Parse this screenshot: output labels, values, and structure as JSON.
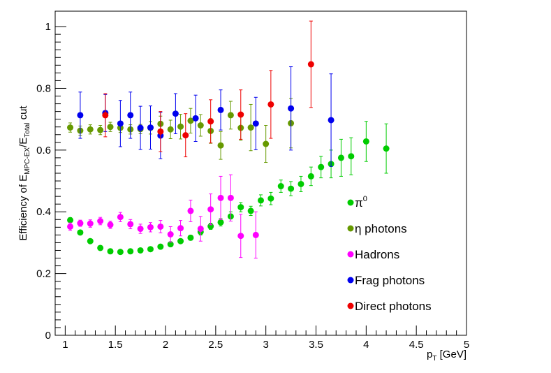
{
  "chart_data": {
    "type": "scatter",
    "title": "",
    "xlabel": "p",
    "xlabel_sub": "T",
    "xlabel_unit": " [GeV]",
    "ylabel_parts": [
      "Efficiency of E",
      "MPC-EX",
      "/E",
      "Total",
      " cut"
    ],
    "xlim": [
      0.9,
      5
    ],
    "ylim": [
      0,
      1.05
    ],
    "xticks": [
      1,
      1.5,
      2,
      2.5,
      3,
      3.5,
      4,
      4.5,
      5
    ],
    "xtick_labels": [
      "1",
      "1.5",
      "2",
      "2.5",
      "3",
      "3.5",
      "4",
      "4.5",
      "5"
    ],
    "yticks": [
      0,
      0.2,
      0.4,
      0.6,
      0.8,
      1
    ],
    "ytick_labels": [
      "0",
      "0.2",
      "0.4",
      "0.6",
      "0.8",
      "1"
    ],
    "legend_position": "right",
    "series": [
      {
        "name": "π⁰",
        "legend_main": "π",
        "legend_sup": "0",
        "color": "#00cc00",
        "x": [
          1.05,
          1.15,
          1.25,
          1.35,
          1.45,
          1.55,
          1.65,
          1.75,
          1.85,
          1.95,
          2.05,
          2.15,
          2.25,
          2.35,
          2.45,
          2.55,
          2.65,
          2.75,
          2.85,
          2.95,
          3.05,
          3.15,
          3.25,
          3.35,
          3.45,
          3.55,
          3.65,
          3.75,
          3.85,
          4.0,
          4.2
        ],
        "y": [
          0.373,
          0.333,
          0.305,
          0.283,
          0.272,
          0.27,
          0.272,
          0.275,
          0.279,
          0.287,
          0.295,
          0.305,
          0.316,
          0.335,
          0.353,
          0.366,
          0.385,
          0.415,
          0.403,
          0.437,
          0.443,
          0.483,
          0.475,
          0.49,
          0.515,
          0.545,
          0.555,
          0.575,
          0.58,
          0.628,
          0.605
        ],
        "err": [
          0.008,
          0.007,
          0.006,
          0.006,
          0.006,
          0.006,
          0.006,
          0.006,
          0.006,
          0.006,
          0.007,
          0.007,
          0.008,
          0.01,
          0.01,
          0.012,
          0.015,
          0.015,
          0.015,
          0.018,
          0.02,
          0.02,
          0.023,
          0.025,
          0.03,
          0.035,
          0.045,
          0.06,
          0.06,
          0.065,
          0.08
        ]
      },
      {
        "name": "η photons",
        "legend_main": "η photons",
        "legend_sup": "",
        "color": "#669900",
        "x": [
          1.05,
          1.15,
          1.25,
          1.35,
          1.45,
          1.55,
          1.65,
          1.75,
          1.85,
          1.95,
          2.05,
          2.15,
          2.25,
          2.35,
          2.45,
          2.55,
          2.65,
          2.75,
          2.85,
          3.0,
          3.25
        ],
        "y": [
          0.673,
          0.663,
          0.667,
          0.665,
          0.675,
          0.672,
          0.667,
          0.668,
          0.672,
          0.685,
          0.667,
          0.676,
          0.695,
          0.68,
          0.662,
          0.615,
          0.713,
          0.672,
          0.673,
          0.62,
          0.687
        ],
        "err": [
          0.015,
          0.015,
          0.015,
          0.015,
          0.015,
          0.015,
          0.015,
          0.015,
          0.02,
          0.025,
          0.03,
          0.04,
          0.04,
          0.035,
          0.04,
          0.045,
          0.045,
          0.04,
          0.075,
          0.06,
          0.08
        ]
      },
      {
        "name": "Hadrons",
        "legend_main": "Hadrons",
        "legend_sup": "",
        "color": "#ff00ff",
        "x": [
          1.05,
          1.15,
          1.25,
          1.35,
          1.45,
          1.55,
          1.65,
          1.75,
          1.85,
          1.95,
          2.05,
          2.15,
          2.25,
          2.35,
          2.45,
          2.55,
          2.65,
          2.75,
          2.9
        ],
        "y": [
          0.352,
          0.363,
          0.362,
          0.37,
          0.358,
          0.383,
          0.36,
          0.345,
          0.35,
          0.352,
          0.327,
          0.347,
          0.403,
          0.345,
          0.408,
          0.445,
          0.445,
          0.322,
          0.325
        ],
        "err": [
          0.012,
          0.01,
          0.012,
          0.012,
          0.012,
          0.015,
          0.015,
          0.015,
          0.015,
          0.02,
          0.025,
          0.025,
          0.035,
          0.04,
          0.05,
          0.07,
          0.075,
          0.07,
          0.075
        ]
      },
      {
        "name": "Frag photons",
        "legend_main": "Frag photons",
        "legend_sup": "",
        "color": "#0000ee",
        "x": [
          1.15,
          1.4,
          1.55,
          1.65,
          1.75,
          1.85,
          1.95,
          2.1,
          2.3,
          2.55,
          2.9,
          3.25,
          3.65
        ],
        "y": [
          0.713,
          0.72,
          0.686,
          0.713,
          0.672,
          0.673,
          0.647,
          0.718,
          0.703,
          0.73,
          0.686,
          0.735,
          0.697
        ],
        "err": [
          0.075,
          0.06,
          0.075,
          0.075,
          0.07,
          0.07,
          0.075,
          0.065,
          0.075,
          0.065,
          0.085,
          0.135,
          0.15
        ]
      },
      {
        "name": "Direct photons",
        "legend_main": "Direct photons",
        "legend_sup": "",
        "color": "#ee0000",
        "x": [
          1.4,
          1.95,
          2.2,
          2.45,
          2.75,
          3.05,
          3.45
        ],
        "y": [
          0.713,
          0.66,
          0.648,
          0.693,
          0.715,
          0.748,
          0.878
        ],
        "err": [
          0.07,
          0.065,
          0.07,
          0.07,
          0.08,
          0.11,
          0.14
        ]
      }
    ]
  }
}
